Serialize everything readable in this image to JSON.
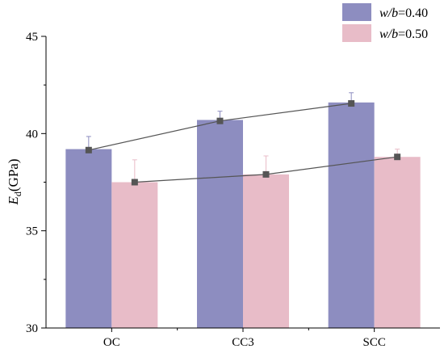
{
  "chart_data": {
    "type": "bar",
    "categories": [
      "OC",
      "CC3",
      "SCC"
    ],
    "series": [
      {
        "name_italic": "w/b",
        "name_suffix": "=0.40",
        "values": [
          39.2,
          40.7,
          41.6
        ],
        "errors": [
          0.65,
          0.45,
          0.5
        ],
        "trend": [
          39.15,
          40.65,
          41.55
        ],
        "color": "#8d8dc0"
      },
      {
        "name_italic": "w/b",
        "name_suffix": "=0.50",
        "values": [
          37.5,
          37.9,
          38.8
        ],
        "errors": [
          1.15,
          0.95,
          0.4
        ],
        "trend": [
          37.5,
          37.9,
          38.8
        ],
        "color": "#e8bcc8"
      }
    ],
    "ylabel_main": "E",
    "ylabel_sub": "d",
    "ylabel_unit": "(GPa)",
    "ylim": [
      30,
      45
    ],
    "yticks": [
      30,
      35,
      40,
      45
    ],
    "grid": false,
    "legend": "top-right",
    "trend_line_color": "#555555",
    "trend_marker_color": "#555555",
    "axis_color": "#000000"
  }
}
